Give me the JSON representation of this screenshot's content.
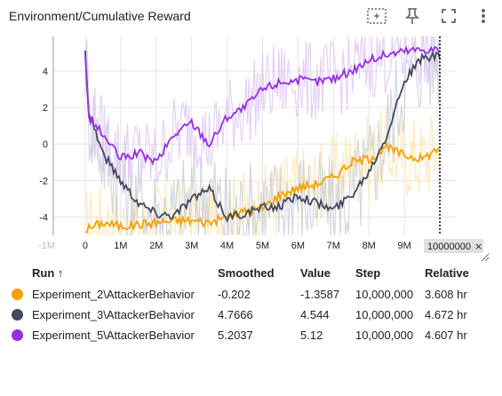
{
  "header": {
    "title": "Environment/Cumulative Reward",
    "icons": [
      "fit-domain-icon",
      "pin-icon",
      "fullscreen-icon",
      "more-vert-icon"
    ]
  },
  "chart_data": {
    "type": "line",
    "y_ticks": [
      "4",
      "2",
      "0",
      "-2",
      "-4"
    ],
    "y_tick_values": [
      4,
      2,
      0,
      -2,
      -4
    ],
    "x_ticks": [
      "0",
      "1M",
      "2M",
      "3M",
      "4M",
      "5M",
      "6M",
      "7M",
      "8M",
      "9M"
    ],
    "x_tick_values": [
      0,
      1000000,
      2000000,
      3000000,
      4000000,
      5000000,
      6000000,
      7000000,
      8000000,
      9000000
    ],
    "x_left_clipped_tick": "-1M",
    "xlim": [
      -900000,
      10450000
    ],
    "ylim": [
      -5.0,
      5.9
    ],
    "hover_step": 10000000,
    "hover_label": "10000000",
    "grid": true,
    "legend": "none",
    "series": [
      {
        "run": "Experiment_2\\AttackerBehavior",
        "color": "#f5a100",
        "raw_color": "#ffe4a8",
        "x": [
          0,
          500000,
          1000000,
          1500000,
          2000000,
          2500000,
          3000000,
          3500000,
          4000000,
          4500000,
          5000000,
          5500000,
          6000000,
          6500000,
          7000000,
          7500000,
          8000000,
          8500000,
          9000000,
          9500000,
          10000000
        ],
        "y": [
          -4.7,
          -4.3,
          -4.5,
          -4.4,
          -4.3,
          -4.2,
          -4.2,
          -4.3,
          -4.0,
          -3.7,
          -3.5,
          -2.8,
          -2.4,
          -2.2,
          -1.8,
          -1.0,
          -0.8,
          -0.2,
          -0.6,
          -0.8,
          -0.2
        ]
      },
      {
        "run": "Experiment_3\\AttackerBehavior",
        "color": "#424a5e",
        "raw_color": "#c5c9d4",
        "x": [
          0,
          100000,
          500000,
          1000000,
          1500000,
          2000000,
          2500000,
          3000000,
          3500000,
          4000000,
          4500000,
          5000000,
          5500000,
          6000000,
          6500000,
          7000000,
          7500000,
          8000000,
          8500000,
          9000000,
          9500000,
          10000000
        ],
        "y": [
          5.0,
          1.8,
          -0.5,
          -2.0,
          -3.2,
          -3.8,
          -3.9,
          -3.0,
          -2.5,
          -4.0,
          -3.8,
          -3.5,
          -3.4,
          -2.8,
          -3.2,
          -3.6,
          -2.8,
          -1.5,
          0.5,
          3.5,
          4.7,
          4.8
        ]
      },
      {
        "run": "Experiment_5\\AttackerBehavior",
        "color": "#9431de",
        "raw_color": "#dcc0f5",
        "x": [
          0,
          100000,
          500000,
          1000000,
          1500000,
          2000000,
          2500000,
          3000000,
          3500000,
          4000000,
          4500000,
          5000000,
          5500000,
          6000000,
          6500000,
          7000000,
          7500000,
          8000000,
          8500000,
          9000000,
          9500000,
          10000000
        ],
        "y": [
          5.0,
          1.5,
          0.5,
          -0.8,
          -0.5,
          -1.0,
          0.5,
          1.2,
          0.0,
          1.5,
          2.0,
          3.0,
          3.4,
          3.5,
          3.4,
          3.6,
          4.0,
          4.6,
          4.9,
          5.1,
          5.2,
          5.2
        ]
      }
    ]
  },
  "table": {
    "headers": {
      "run": "Run ↑",
      "smoothed": "Smoothed",
      "value": "Value",
      "step": "Step",
      "relative": "Relative"
    },
    "rows": [
      {
        "color": "#f5a100",
        "run": "Experiment_2\\AttackerBehavior",
        "smoothed": "-0.202",
        "value": "-1.3587",
        "step": "10,000,000",
        "relative": "3.608 hr"
      },
      {
        "color": "#424a5e",
        "run": "Experiment_3\\AttackerBehavior",
        "smoothed": "4.7666",
        "value": "4.544",
        "step": "10,000,000",
        "relative": "4.672 hr"
      },
      {
        "color": "#9431de",
        "run": "Experiment_5\\AttackerBehavior",
        "smoothed": "5.2037",
        "value": "5.12",
        "step": "10,000,000",
        "relative": "4.607 hr"
      }
    ]
  }
}
